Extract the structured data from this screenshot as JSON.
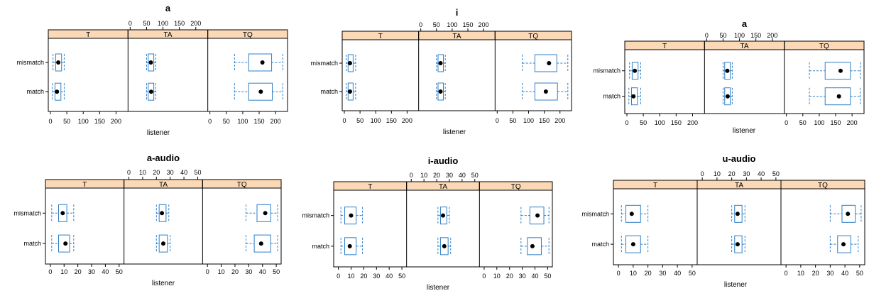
{
  "chart_data": [
    {
      "type": "boxplot",
      "title": "a",
      "xlabel": "listener",
      "ylabel": "",
      "xlim": [
        0,
        230
      ],
      "ticks": [
        0,
        50,
        100,
        150,
        200
      ],
      "panels": [
        "T",
        "TA",
        "TQ"
      ],
      "rows": [
        "mismatch",
        "match"
      ],
      "series": [
        {
          "panel": "T",
          "condition": "mismatch",
          "min": 8,
          "q1": 16,
          "median": 24,
          "q3": 34,
          "max": 42
        },
        {
          "panel": "T",
          "condition": "match",
          "min": 6,
          "q1": 14,
          "median": 20,
          "q3": 32,
          "max": 42
        },
        {
          "panel": "TA",
          "condition": "mismatch",
          "min": 50,
          "q1": 55,
          "median": 63,
          "q3": 72,
          "max": 78
        },
        {
          "panel": "TA",
          "condition": "match",
          "min": 50,
          "q1": 55,
          "median": 64,
          "q3": 72,
          "max": 78
        },
        {
          "panel": "TQ",
          "condition": "mismatch",
          "min": 75,
          "q1": 118,
          "median": 160,
          "q3": 188,
          "max": 222
        },
        {
          "panel": "TQ",
          "condition": "match",
          "min": 75,
          "q1": 118,
          "median": 155,
          "q3": 190,
          "max": 222
        }
      ]
    },
    {
      "type": "boxplot",
      "title": "i",
      "xlabel": "listener",
      "ylabel": "",
      "xlim": [
        0,
        230
      ],
      "ticks": [
        0,
        50,
        100,
        150,
        200
      ],
      "panels": [
        "T",
        "TA",
        "TQ"
      ],
      "rows": [
        "mismatch",
        "match"
      ],
      "series": [
        {
          "panel": "T",
          "condition": "mismatch",
          "min": 6,
          "q1": 12,
          "median": 18,
          "q3": 28,
          "max": 36
        },
        {
          "panel": "T",
          "condition": "match",
          "min": 6,
          "q1": 12,
          "median": 18,
          "q3": 28,
          "max": 36
        },
        {
          "panel": "TA",
          "condition": "mismatch",
          "min": 50,
          "q1": 55,
          "median": 63,
          "q3": 72,
          "max": 78
        },
        {
          "panel": "TA",
          "condition": "match",
          "min": 50,
          "q1": 55,
          "median": 63,
          "q3": 72,
          "max": 78
        },
        {
          "panel": "TQ",
          "condition": "mismatch",
          "min": 80,
          "q1": 120,
          "median": 165,
          "q3": 190,
          "max": 225
        },
        {
          "panel": "TQ",
          "condition": "match",
          "min": 80,
          "q1": 120,
          "median": 155,
          "q3": 192,
          "max": 225
        }
      ]
    },
    {
      "type": "boxplot",
      "title": "a",
      "xlabel": "listener",
      "ylabel": "",
      "xlim": [
        0,
        230
      ],
      "ticks": [
        0,
        50,
        100,
        150,
        200
      ],
      "panels": [
        "T",
        "TA",
        "TQ"
      ],
      "rows": [
        "mismatch",
        "match"
      ],
      "series": [
        {
          "panel": "T",
          "condition": "mismatch",
          "min": 8,
          "q1": 16,
          "median": 24,
          "q3": 34,
          "max": 42
        },
        {
          "panel": "T",
          "condition": "match",
          "min": 6,
          "q1": 14,
          "median": 20,
          "q3": 32,
          "max": 42
        },
        {
          "panel": "TA",
          "condition": "mismatch",
          "min": 50,
          "q1": 55,
          "median": 63,
          "q3": 72,
          "max": 78
        },
        {
          "panel": "TA",
          "condition": "match",
          "min": 50,
          "q1": 55,
          "median": 64,
          "q3": 72,
          "max": 78
        },
        {
          "panel": "TQ",
          "condition": "mismatch",
          "min": 70,
          "q1": 118,
          "median": 165,
          "q3": 195,
          "max": 225
        },
        {
          "panel": "TQ",
          "condition": "match",
          "min": 70,
          "q1": 118,
          "median": 160,
          "q3": 195,
          "max": 225
        }
      ]
    },
    {
      "type": "boxplot",
      "title": "a-audio",
      "xlabel": "listener",
      "ylabel": "",
      "xlim": [
        -2,
        52
      ],
      "ticks": [
        0,
        10,
        20,
        30,
        40,
        50
      ],
      "panels": [
        "T",
        "TA",
        "TQ"
      ],
      "rows": [
        "mismatch",
        "match"
      ],
      "series": [
        {
          "panel": "T",
          "condition": "mismatch",
          "min": 1,
          "q1": 6,
          "median": 9,
          "q3": 12,
          "max": 17
        },
        {
          "panel": "T",
          "condition": "match",
          "min": 1,
          "q1": 6,
          "median": 11,
          "q3": 14,
          "max": 17
        },
        {
          "panel": "TA",
          "condition": "mismatch",
          "min": 20,
          "q1": 22,
          "median": 24,
          "q3": 27,
          "max": 29
        },
        {
          "panel": "TA",
          "condition": "match",
          "min": 20,
          "q1": 22,
          "median": 25,
          "q3": 28,
          "max": 30
        },
        {
          "panel": "TQ",
          "condition": "mismatch",
          "min": 28,
          "q1": 36,
          "median": 42,
          "q3": 46,
          "max": 51
        },
        {
          "panel": "TQ",
          "condition": "match",
          "min": 28,
          "q1": 34,
          "median": 39,
          "q3": 46,
          "max": 51
        }
      ]
    },
    {
      "type": "boxplot",
      "title": "i-audio",
      "xlabel": "listener",
      "ylabel": "",
      "xlim": [
        -2,
        52
      ],
      "ticks": [
        0,
        10,
        20,
        30,
        40,
        50
      ],
      "panels": [
        "T",
        "TA",
        "TQ"
      ],
      "rows": [
        "mismatch",
        "match"
      ],
      "series": [
        {
          "panel": "T",
          "condition": "mismatch",
          "min": 2,
          "q1": 5,
          "median": 10,
          "q3": 14,
          "max": 19
        },
        {
          "panel": "T",
          "condition": "match",
          "min": 2,
          "q1": 5,
          "median": 9,
          "q3": 14,
          "max": 19
        },
        {
          "panel": "TA",
          "condition": "mismatch",
          "min": 21,
          "q1": 23,
          "median": 25,
          "q3": 28,
          "max": 30
        },
        {
          "panel": "TA",
          "condition": "match",
          "min": 21,
          "q1": 23,
          "median": 26,
          "q3": 29,
          "max": 31
        },
        {
          "panel": "TQ",
          "condition": "mismatch",
          "min": 29,
          "q1": 36,
          "median": 42,
          "q3": 47,
          "max": 51
        },
        {
          "panel": "TQ",
          "condition": "match",
          "min": 29,
          "q1": 34,
          "median": 38,
          "q3": 45,
          "max": 51
        }
      ]
    },
    {
      "type": "boxplot",
      "title": "u-audio",
      "xlabel": "listener",
      "ylabel": "",
      "xlim": [
        -2,
        52
      ],
      "ticks": [
        0,
        10,
        20,
        30,
        40,
        50
      ],
      "panels": [
        "T",
        "TA",
        "TQ"
      ],
      "rows": [
        "mismatch",
        "match"
      ],
      "series": [
        {
          "panel": "T",
          "condition": "mismatch",
          "min": 2,
          "q1": 5,
          "median": 9,
          "q3": 15,
          "max": 20
        },
        {
          "panel": "T",
          "condition": "match",
          "min": 2,
          "q1": 5,
          "median": 10,
          "q3": 15,
          "max": 20
        },
        {
          "panel": "TA",
          "condition": "mismatch",
          "min": 20,
          "q1": 22,
          "median": 24,
          "q3": 27,
          "max": 29
        },
        {
          "panel": "TA",
          "condition": "match",
          "min": 20,
          "q1": 22,
          "median": 24,
          "q3": 27,
          "max": 29
        },
        {
          "panel": "TQ",
          "condition": "mismatch",
          "min": 30,
          "q1": 38,
          "median": 42,
          "q3": 47,
          "max": 51
        },
        {
          "panel": "TQ",
          "condition": "match",
          "min": 30,
          "q1": 35,
          "median": 39,
          "q3": 44,
          "max": 49
        }
      ]
    }
  ],
  "colors": {
    "strip": "#fcd9b6",
    "box": "#2e7fc7",
    "frame": "#000000",
    "median_dot": "#000000"
  }
}
